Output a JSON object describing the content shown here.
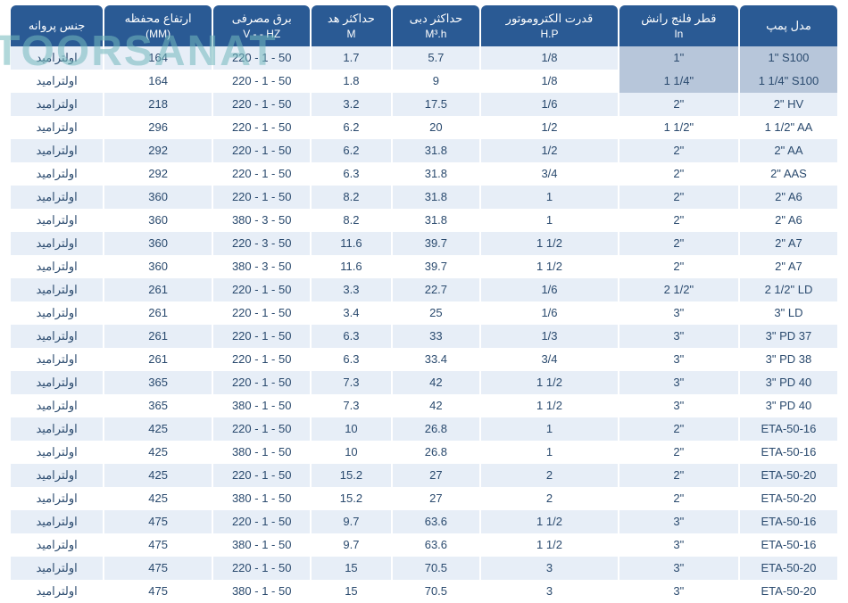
{
  "watermark": {
    "text": "ATOORSANAT",
    "color": "#73b9bd",
    "opacity": 0.55
  },
  "table": {
    "header_bg": "#2a5a94",
    "header_fg": "#ffffff",
    "row_bg_even": "#e7eef7",
    "row_bg_odd": "#ffffff",
    "text_color": "#2a4a6e",
    "highlight_bg": "#b7c6da",
    "border_spacing": 2,
    "font_size": 13,
    "columns": [
      {
        "key": "model",
        "title": "مدل پمپ",
        "sub": ""
      },
      {
        "key": "flange",
        "title": "قطر فلنج رانش",
        "sub": "In"
      },
      {
        "key": "hp",
        "title": "قدرت الکتروموتور",
        "sub": "H.P"
      },
      {
        "key": "flow",
        "title": "حداکثر دبی",
        "sub": "M³.h"
      },
      {
        "key": "head",
        "title": "حداکثر هد",
        "sub": "M"
      },
      {
        "key": "power",
        "title": "برق مصرفی",
        "sub": "V -    - HZ"
      },
      {
        "key": "height",
        "title": "ارتفاع محفظه",
        "sub": "(MM)"
      },
      {
        "key": "impeller",
        "title": "جنس پروانه",
        "sub": ""
      }
    ],
    "rows": [
      {
        "model": "1\" S100",
        "flange": "1\"",
        "hp": "1/8",
        "flow": "5.7",
        "head": "1.7",
        "power": "220 - 1 - 50",
        "height": "164",
        "impeller": "اولترامید",
        "hl": true
      },
      {
        "model": "1 1/4\" S100",
        "flange": "1 1/4\"",
        "hp": "1/8",
        "flow": "9",
        "head": "1.8",
        "power": "220 - 1 - 50",
        "height": "164",
        "impeller": "اولترامید",
        "hl": true
      },
      {
        "model": "2\" HV",
        "flange": "2\"",
        "hp": "1/6",
        "flow": "17.5",
        "head": "3.2",
        "power": "220 - 1 - 50",
        "height": "218",
        "impeller": "اولترامید"
      },
      {
        "model": "1 1/2\" AA",
        "flange": "1 1/2\"",
        "hp": "1/2",
        "flow": "20",
        "head": "6.2",
        "power": "220 - 1 - 50",
        "height": "296",
        "impeller": "اولترامید"
      },
      {
        "model": "2\" AA",
        "flange": "2\"",
        "hp": "1/2",
        "flow": "31.8",
        "head": "6.2",
        "power": "220 - 1 - 50",
        "height": "292",
        "impeller": "اولترامید"
      },
      {
        "model": "2\" AAS",
        "flange": "2\"",
        "hp": "3/4",
        "flow": "31.8",
        "head": "6.3",
        "power": "220 - 1 - 50",
        "height": "292",
        "impeller": "اولترامید"
      },
      {
        "model": "2\" A6",
        "flange": "2\"",
        "hp": "1",
        "flow": "31.8",
        "head": "8.2",
        "power": "220 - 1 - 50",
        "height": "360",
        "impeller": "اولترامید"
      },
      {
        "model": "2\" A6",
        "flange": "2\"",
        "hp": "1",
        "flow": "31.8",
        "head": "8.2",
        "power": "380 - 3 - 50",
        "height": "360",
        "impeller": "اولترامید"
      },
      {
        "model": "2\" A7",
        "flange": "2\"",
        "hp": "1 1/2",
        "flow": "39.7",
        "head": "11.6",
        "power": "220 - 3 - 50",
        "height": "360",
        "impeller": "اولترامید"
      },
      {
        "model": "2\" A7",
        "flange": "2\"",
        "hp": "1 1/2",
        "flow": "39.7",
        "head": "11.6",
        "power": "380 - 3 - 50",
        "height": "360",
        "impeller": "اولترامید"
      },
      {
        "model": "2 1/2\" LD",
        "flange": "2 1/2\"",
        "hp": "1/6",
        "flow": "22.7",
        "head": "3.3",
        "power": "220 - 1 - 50",
        "height": "261",
        "impeller": "اولترامید"
      },
      {
        "model": "3\" LD",
        "flange": "3\"",
        "hp": "1/6",
        "flow": "25",
        "head": "3.4",
        "power": "220 - 1 - 50",
        "height": "261",
        "impeller": "اولترامید"
      },
      {
        "model": "3\" PD 37",
        "flange": "3\"",
        "hp": "1/3",
        "flow": "33",
        "head": "6.3",
        "power": "220 - 1 - 50",
        "height": "261",
        "impeller": "اولترامید"
      },
      {
        "model": "3\" PD 38",
        "flange": "3\"",
        "hp": "3/4",
        "flow": "33.4",
        "head": "6.3",
        "power": "220 - 1 - 50",
        "height": "261",
        "impeller": "اولترامید"
      },
      {
        "model": "3\" PD 40",
        "flange": "3\"",
        "hp": "1 1/2",
        "flow": "42",
        "head": "7.3",
        "power": "220 - 1 - 50",
        "height": "365",
        "impeller": "اولترامید"
      },
      {
        "model": "3\" PD 40",
        "flange": "3\"",
        "hp": "1 1/2",
        "flow": "42",
        "head": "7.3",
        "power": "380 - 1 - 50",
        "height": "365",
        "impeller": "اولترامید"
      },
      {
        "model": "ETA-50-16",
        "flange": "2\"",
        "hp": "1",
        "flow": "26.8",
        "head": "10",
        "power": "220 - 1 - 50",
        "height": "425",
        "impeller": "اولترامید"
      },
      {
        "model": "ETA-50-16",
        "flange": "2\"",
        "hp": "1",
        "flow": "26.8",
        "head": "10",
        "power": "380 - 1 - 50",
        "height": "425",
        "impeller": "اولترامید"
      },
      {
        "model": "ETA-50-20",
        "flange": "2\"",
        "hp": "2",
        "flow": "27",
        "head": "15.2",
        "power": "220 - 1 - 50",
        "height": "425",
        "impeller": "اولترامید"
      },
      {
        "model": "ETA-50-20",
        "flange": "2\"",
        "hp": "2",
        "flow": "27",
        "head": "15.2",
        "power": "380 - 1 - 50",
        "height": "425",
        "impeller": "اولترامید"
      },
      {
        "model": "ETA-50-16",
        "flange": "3\"",
        "hp": "1 1/2",
        "flow": "63.6",
        "head": "9.7",
        "power": "220 - 1 - 50",
        "height": "475",
        "impeller": "اولترامید"
      },
      {
        "model": "ETA-50-16",
        "flange": "3\"",
        "hp": "1 1/2",
        "flow": "63.6",
        "head": "9.7",
        "power": "380 - 1 - 50",
        "height": "475",
        "impeller": "اولترامید"
      },
      {
        "model": "ETA-50-20",
        "flange": "3\"",
        "hp": "3",
        "flow": "70.5",
        "head": "15",
        "power": "220 - 1 - 50",
        "height": "475",
        "impeller": "اولترامید"
      },
      {
        "model": "ETA-50-20",
        "flange": "3\"",
        "hp": "3",
        "flow": "70.5",
        "head": "15",
        "power": "380 - 1 - 50",
        "height": "475",
        "impeller": "اولترامید"
      }
    ]
  }
}
